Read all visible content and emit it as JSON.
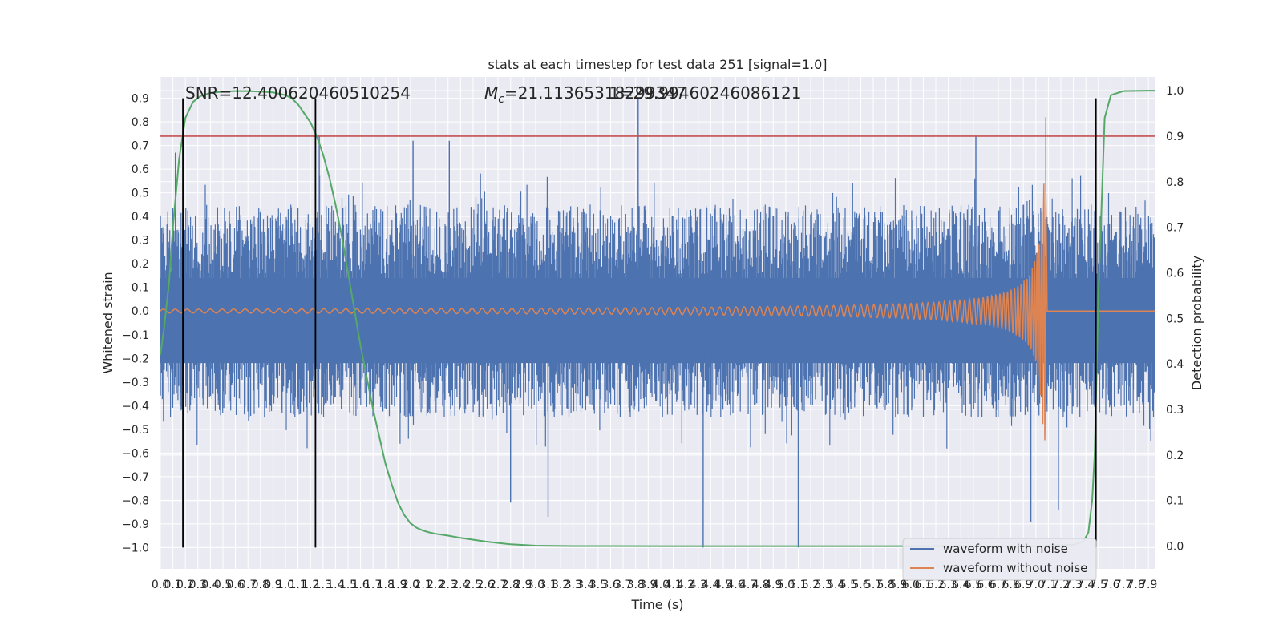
{
  "chart_data": {
    "type": "line",
    "title": "stats at each timestep for test data 251 [signal=1.0]",
    "xlabel": "Time (s)",
    "ylabel": "Whitened strain",
    "ylabel_right": "Detection probability",
    "xlim": [
      0.0,
      7.95
    ],
    "ylim": [
      -1.09,
      0.99
    ],
    "ylim_right": [
      -0.05,
      1.03
    ],
    "grid": true,
    "legend_position": "bottom-right",
    "x_ticks": [
      "0.0",
      "0.1",
      "0.2",
      "0.3",
      "0.4",
      "0.5",
      "0.6",
      "0.7",
      "0.8",
      "0.9",
      "1.0",
      "1.1",
      "1.2",
      "1.3",
      "1.4",
      "1.5",
      "1.6",
      "1.7",
      "1.8",
      "1.9",
      "2.0",
      "2.1",
      "2.2",
      "2.3",
      "2.4",
      "2.5",
      "2.6",
      "2.7",
      "2.8",
      "2.9",
      "3.0",
      "3.1",
      "3.2",
      "3.3",
      "3.4",
      "3.5",
      "3.6",
      "3.7",
      "3.8",
      "3.9",
      "4.0",
      "4.1",
      "4.2",
      "4.3",
      "4.4",
      "4.5",
      "4.6",
      "4.7",
      "4.8",
      "4.9",
      "5.0",
      "5.1",
      "5.2",
      "5.3",
      "5.4",
      "5.5",
      "5.6",
      "5.7",
      "5.8",
      "5.9",
      "6.0",
      "6.1",
      "6.2",
      "6.3",
      "6.4",
      "6.5",
      "6.6",
      "6.7",
      "6.8",
      "6.9",
      "7.0",
      "7.1",
      "7.2",
      "7.3",
      "7.4",
      "7.5",
      "7.6",
      "7.7",
      "7.8",
      "7.9"
    ],
    "y_ticks": [
      "0.9",
      "0.8",
      "0.7",
      "0.6",
      "0.5",
      "0.4",
      "0.3",
      "0.2",
      "0.1",
      "0.0",
      "−0.1",
      "−0.2",
      "−0.3",
      "−0.4",
      "−0.5",
      "−0.6",
      "−0.7",
      "−0.8",
      "−0.9",
      "−1.0"
    ],
    "y_ticks_right": [
      "1.0",
      "0.9",
      "0.8",
      "0.7",
      "0.6",
      "0.5",
      "0.4",
      "0.3",
      "0.2",
      "0.1",
      "0.0"
    ],
    "annotations": {
      "snr": "SNR=12.400620460510254",
      "mc_symbol": "M",
      "mc_subscript": "c",
      "mc_value": "=21.11365318299347",
      "mc_overlap": "1=29.99460246086121"
    },
    "threshold_line": {
      "y_right": 0.9,
      "color": "#c44e52"
    },
    "vertical_markers_x": [
      0.18,
      1.24,
      7.48
    ],
    "series": [
      {
        "name": "waveform with noise",
        "color": "#4c72b0",
        "envelope": {
          "typical_amplitude": 0.45,
          "max": 0.9,
          "min": -1.0
        },
        "spikes": [
          {
            "x": 0.12,
            "y": 0.67
          },
          {
            "x": 1.27,
            "y": 0.74
          },
          {
            "x": 2.02,
            "y": 0.72
          },
          {
            "x": 2.31,
            "y": 0.72
          },
          {
            "x": 3.82,
            "y": 0.9
          },
          {
            "x": 4.34,
            "y": -1.0
          },
          {
            "x": 5.1,
            "y": -1.0
          },
          {
            "x": 6.52,
            "y": 0.74
          },
          {
            "x": 6.96,
            "y": -0.89
          },
          {
            "x": 7.08,
            "y": 0.82
          },
          {
            "x": 7.18,
            "y": -0.84
          },
          {
            "x": 2.8,
            "y": -0.81
          },
          {
            "x": 3.1,
            "y": -0.87
          }
        ]
      },
      {
        "name": "waveform without noise",
        "color": "#dd8452",
        "chirp": {
          "start_amplitude": 0.008,
          "peak_amplitude": 0.55,
          "peak_x": 7.08,
          "f0": 10.5,
          "f1": 55
        }
      },
      {
        "name": "detection probability",
        "axis": "right",
        "color": "#55a868",
        "x": [
          0.0,
          0.03,
          0.07,
          0.1,
          0.15,
          0.2,
          0.26,
          0.32,
          0.4,
          0.5,
          0.6,
          0.7,
          0.8,
          0.9,
          1.0,
          1.05,
          1.1,
          1.15,
          1.2,
          1.25,
          1.3,
          1.35,
          1.4,
          1.45,
          1.5,
          1.55,
          1.6,
          1.65,
          1.7,
          1.75,
          1.8,
          1.85,
          1.9,
          1.95,
          2.0,
          2.05,
          2.1,
          2.15,
          2.2,
          2.3,
          2.4,
          2.6,
          2.8,
          3.0,
          3.3,
          4.0,
          5.0,
          6.0,
          7.0,
          7.3,
          7.38,
          7.42,
          7.45,
          7.47,
          7.5,
          7.55,
          7.6,
          7.7,
          7.9,
          7.95
        ],
        "values": [
          0.42,
          0.48,
          0.58,
          0.7,
          0.85,
          0.94,
          0.975,
          0.988,
          0.995,
          0.998,
          0.999,
          0.999,
          0.998,
          0.996,
          0.99,
          0.983,
          0.97,
          0.95,
          0.93,
          0.9,
          0.86,
          0.81,
          0.75,
          0.68,
          0.6,
          0.52,
          0.44,
          0.37,
          0.3,
          0.24,
          0.18,
          0.135,
          0.095,
          0.068,
          0.05,
          0.04,
          0.034,
          0.03,
          0.027,
          0.023,
          0.018,
          0.01,
          0.004,
          0.001,
          0.0002,
          0.0,
          0.0,
          0.0,
          0.0,
          0.003,
          0.01,
          0.03,
          0.1,
          0.2,
          0.55,
          0.94,
          0.99,
          0.999,
          1.0,
          1.0
        ]
      }
    ]
  }
}
